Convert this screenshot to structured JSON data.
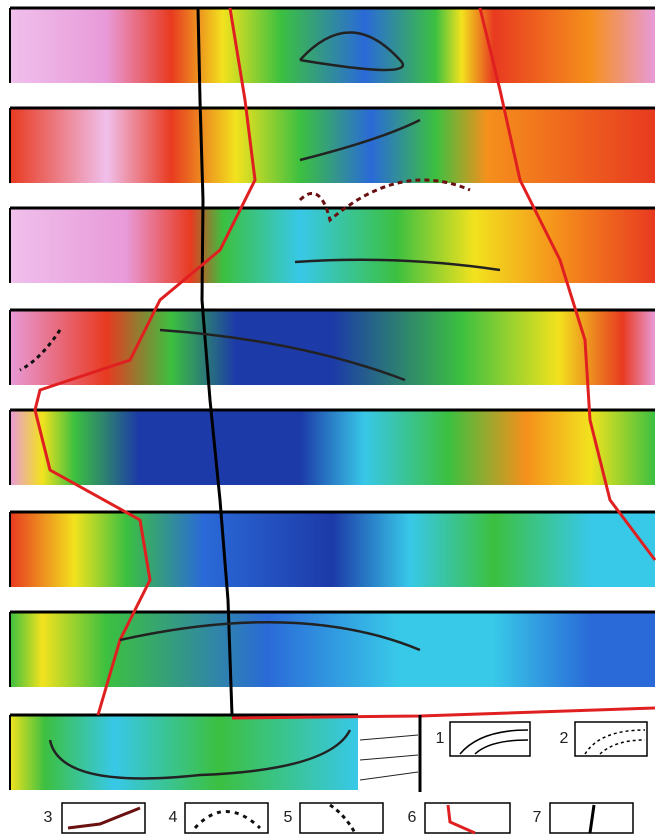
{
  "legend": {
    "items": [
      {
        "label": "1"
      },
      {
        "label": "2"
      },
      {
        "label": "3"
      },
      {
        "label": "4"
      },
      {
        "label": "5"
      },
      {
        "label": "6"
      },
      {
        "label": "7"
      }
    ]
  }
}
